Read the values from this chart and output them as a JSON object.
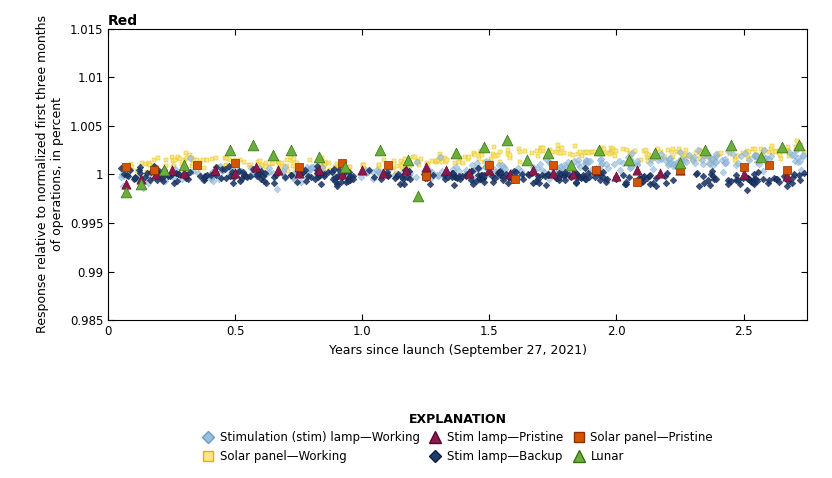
{
  "title": "Red",
  "xlabel": "Years since launch (September 27, 2021)",
  "ylabel": "Response relative to normalized first three months\nof operations, in percent",
  "xlim": [
    0,
    2.75
  ],
  "ylim": [
    0.985,
    1.015
  ],
  "yticks": [
    0.985,
    0.99,
    0.995,
    1.0,
    1.005,
    1.01,
    1.015
  ],
  "ytick_labels": [
    "0.985",
    "0.99",
    "0.995",
    "1",
    "1.005",
    "1.01",
    "1.015"
  ],
  "xticks": [
    0,
    0.5,
    1.0,
    1.5,
    2.0,
    2.5
  ],
  "legend_title": "EXPLANATION",
  "series": {
    "stim_working": {
      "label": "Stimulation (stim) lamp—Working",
      "color": "#9BBFE0",
      "edgecolor": "#6A9CC0",
      "marker": "D",
      "markersize": 4,
      "alpha": 0.7,
      "zorder": 3
    },
    "solar_working": {
      "label": "Solar panel—Working",
      "color": "#FFE680",
      "edgecolor": "#D4B800",
      "marker": "s",
      "markersize": 4,
      "alpha": 0.85,
      "zorder": 2
    },
    "stim_pristine": {
      "label": "Stim lamp—Pristine",
      "color": "#8B1A4A",
      "edgecolor": "#5A0030",
      "marker": "^",
      "markersize": 7,
      "alpha": 1.0,
      "zorder": 5
    },
    "stim_backup": {
      "label": "Stim lamp—Backup",
      "color": "#1E3A6E",
      "edgecolor": "#0D1E40",
      "marker": "D",
      "markersize": 4,
      "alpha": 1.0,
      "zorder": 4
    },
    "solar_pristine": {
      "label": "Solar panel—Pristine",
      "color": "#D45500",
      "edgecolor": "#8B3000",
      "marker": "s",
      "markersize": 6,
      "alpha": 1.0,
      "zorder": 6
    },
    "lunar": {
      "label": "Lunar",
      "color": "#6AAF3D",
      "edgecolor": "#3A7010",
      "marker": "^",
      "markersize": 8,
      "alpha": 1.0,
      "zorder": 7
    }
  }
}
